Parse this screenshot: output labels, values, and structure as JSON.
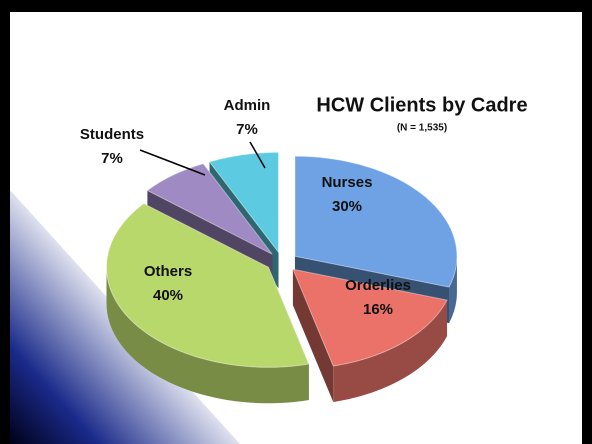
{
  "chart_data": {
    "type": "pie",
    "title": "HCW Clients by Cadre",
    "subtitle": "(N = 1,535)",
    "categories": [
      "Nurses",
      "Orderlies",
      "Others",
      "Students",
      "Admin"
    ],
    "values": [
      30,
      16,
      40,
      7,
      7
    ],
    "value_labels": [
      "30%",
      "16%",
      "40%",
      "7%",
      "7%"
    ],
    "colors": [
      "#6ea2e4",
      "#ea7268",
      "#b8d86c",
      "#a08ac4",
      "#5ccbe2"
    ]
  }
}
